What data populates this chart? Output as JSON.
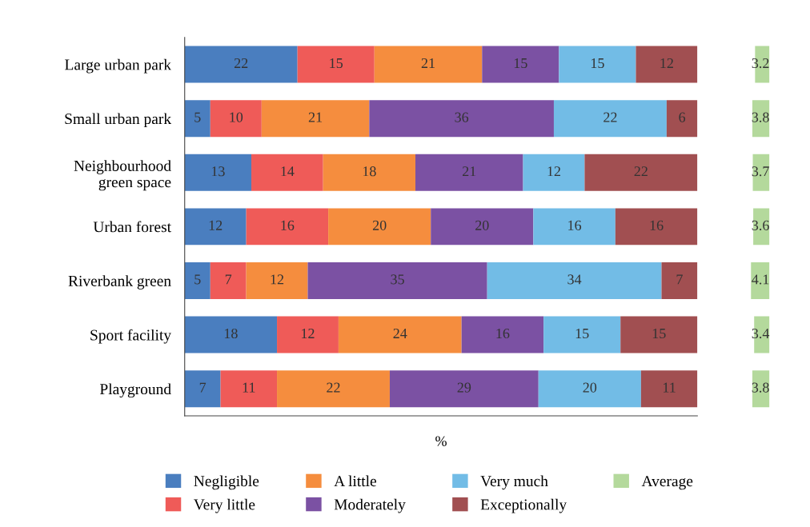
{
  "chart_data": [
    {
      "type": "bar",
      "orientation": "horizontal",
      "stacked": true,
      "xlabel": "%",
      "tick_labels": "y",
      "data_labels": true,
      "legend": "bottom",
      "categories": [
        "Large urban park",
        "Small urban park",
        "Neighbourhood\ngreen space",
        "Urban forest",
        "Riverbank green",
        "Sport facility",
        "Playground"
      ],
      "series": [
        {
          "name": "Negligible",
          "color": "#4a7ebf",
          "values": [
            22,
            5,
            13,
            12,
            5,
            18,
            7
          ]
        },
        {
          "name": "Very little",
          "color": "#ef5b58",
          "values": [
            15,
            10,
            14,
            16,
            7,
            12,
            11
          ]
        },
        {
          "name": "A little",
          "color": "#f58d3e",
          "values": [
            21,
            21,
            18,
            20,
            12,
            24,
            22
          ]
        },
        {
          "name": "Moderately",
          "color": "#7b51a3",
          "values": [
            15,
            36,
            21,
            20,
            35,
            16,
            29
          ]
        },
        {
          "name": "Very much",
          "color": "#72bce6",
          "values": [
            15,
            22,
            12,
            16,
            34,
            15,
            20
          ]
        },
        {
          "name": "Exceptionally",
          "color": "#a14f51",
          "values": [
            12,
            6,
            22,
            16,
            7,
            15,
            11
          ]
        }
      ]
    },
    {
      "type": "bar",
      "orientation": "horizontal",
      "tick_labels": false,
      "data_labels": true,
      "legend": "bottom",
      "categories": [
        null,
        null,
        null,
        null,
        null,
        null,
        null
      ],
      "series": [
        {
          "name": "Average",
          "color": "#b4d99c",
          "values": [
            3.2,
            3.8,
            3.7,
            3.6,
            4.1,
            3.4,
            3.8
          ]
        }
      ]
    }
  ]
}
